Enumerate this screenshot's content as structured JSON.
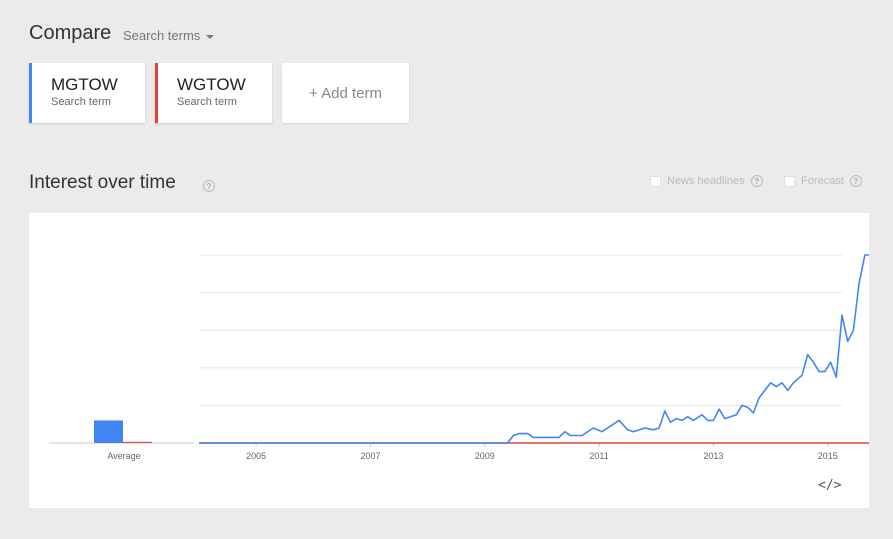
{
  "header": {
    "compare_label": "Compare",
    "search_terms_label": "Search terms"
  },
  "terms": [
    {
      "name": "MGTOW",
      "sub": "Search term",
      "color": "#4285f4"
    },
    {
      "name": "WGTOW",
      "sub": "Search term",
      "color": "#db4437"
    }
  ],
  "add_term_label": "+ Add term",
  "section": {
    "title": "Interest over time",
    "help": "?",
    "news_headlines": "News headlines",
    "forecast": "Forecast"
  },
  "embed_label": "</>",
  "chart_data": {
    "type": "line",
    "xlabel": "",
    "ylabel": "",
    "ylim": [
      0,
      100
    ],
    "grid": true,
    "x_ticks": [
      "2005",
      "2007",
      "2009",
      "2011",
      "2013",
      "2015"
    ],
    "x_range": [
      2004.0,
      2015.25
    ],
    "average": {
      "label": "Average",
      "values": [
        {
          "name": "MGTOW",
          "value": 12,
          "color": "#4285f4"
        },
        {
          "name": "WGTOW",
          "value": 0.6,
          "color": "#db4437"
        }
      ]
    },
    "series": [
      {
        "name": "MGTOW",
        "color": "#4285f4",
        "points": [
          [
            2004.0,
            0
          ],
          [
            2009.4,
            0
          ],
          [
            2009.5,
            4
          ],
          [
            2009.6,
            5
          ],
          [
            2009.75,
            5
          ],
          [
            2009.85,
            3
          ],
          [
            2010.0,
            3
          ],
          [
            2010.2,
            3
          ],
          [
            2010.3,
            3
          ],
          [
            2010.4,
            6
          ],
          [
            2010.5,
            4
          ],
          [
            2010.7,
            4
          ],
          [
            2010.9,
            8
          ],
          [
            2011.05,
            6
          ],
          [
            2011.2,
            9
          ],
          [
            2011.35,
            12
          ],
          [
            2011.5,
            7
          ],
          [
            2011.6,
            6
          ],
          [
            2011.8,
            8
          ],
          [
            2011.95,
            7
          ],
          [
            2012.05,
            8
          ],
          [
            2012.15,
            17
          ],
          [
            2012.25,
            11
          ],
          [
            2012.35,
            13
          ],
          [
            2012.45,
            12
          ],
          [
            2012.55,
            14
          ],
          [
            2012.65,
            12
          ],
          [
            2012.8,
            15
          ],
          [
            2012.9,
            12
          ],
          [
            2013.0,
            12
          ],
          [
            2013.1,
            18
          ],
          [
            2013.2,
            13
          ],
          [
            2013.3,
            14
          ],
          [
            2013.4,
            15
          ],
          [
            2013.5,
            20
          ],
          [
            2013.6,
            19
          ],
          [
            2013.7,
            16
          ],
          [
            2013.8,
            24
          ],
          [
            2013.9,
            28
          ],
          [
            2014.0,
            32
          ],
          [
            2014.1,
            30
          ],
          [
            2014.2,
            32
          ],
          [
            2014.3,
            28
          ],
          [
            2014.4,
            32
          ],
          [
            2014.55,
            36
          ],
          [
            2014.65,
            47
          ],
          [
            2014.75,
            43
          ],
          [
            2014.85,
            38
          ],
          [
            2014.95,
            38
          ],
          [
            2015.05,
            43
          ],
          [
            2015.15,
            35
          ],
          [
            2015.25,
            68
          ],
          [
            2015.35,
            54
          ],
          [
            2015.45,
            60
          ],
          [
            2015.55,
            85
          ],
          [
            2015.65,
            100
          ],
          [
            2015.8,
            100
          ]
        ]
      },
      {
        "name": "WGTOW",
        "color": "#db4437",
        "points": [
          [
            2004.0,
            0
          ],
          [
            2015.8,
            0
          ]
        ]
      }
    ]
  }
}
